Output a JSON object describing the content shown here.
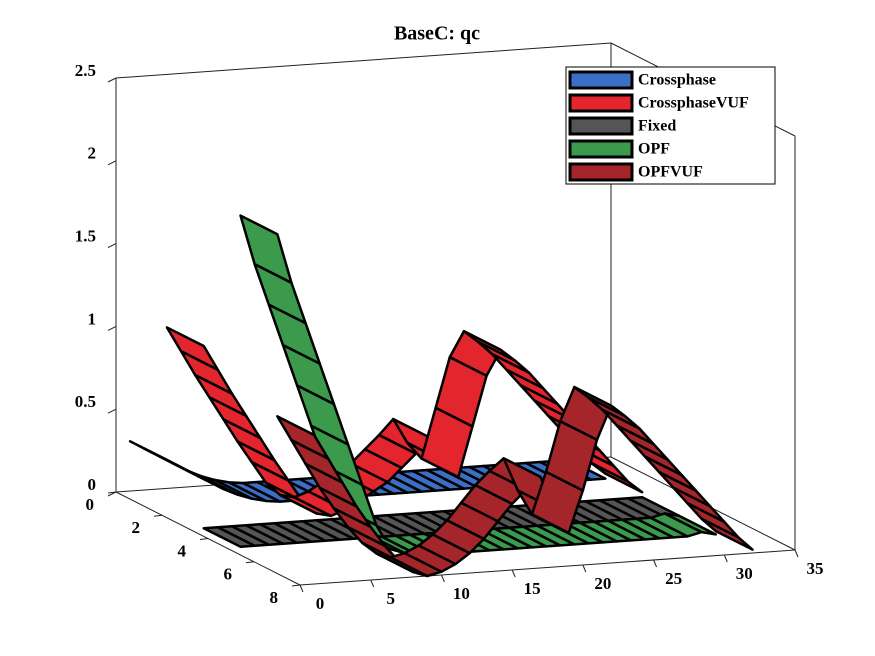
{
  "chart_data": {
    "type": "surface3d",
    "title": "BaseC: qc",
    "x": [
      1,
      2,
      3,
      4,
      5,
      6,
      7,
      8,
      9,
      10,
      11,
      12,
      13,
      14,
      15,
      16,
      17,
      18,
      19,
      20,
      21,
      22,
      23,
      24,
      25,
      26,
      27,
      28,
      29,
      30,
      31,
      32
    ],
    "xlim": [
      0,
      35
    ],
    "xticks": [
      0,
      5,
      10,
      15,
      20,
      25,
      30,
      35
    ],
    "ylim": [
      0,
      8
    ],
    "yticks": [
      0,
      2,
      4,
      6,
      8
    ],
    "zlim": [
      0,
      2.5
    ],
    "zticks": [
      0,
      0.5,
      1,
      1.5,
      2,
      2.5
    ],
    "legend": "upper right",
    "series": [
      {
        "name": "Crossphase",
        "color": "#3b6fc6",
        "values": [
          0.3,
          0.25,
          0.2,
          0.15,
          0.1,
          0.06,
          0.03,
          0.01,
          0,
          0,
          0,
          0,
          0,
          0,
          0,
          0,
          0,
          0,
          0,
          0,
          0,
          0,
          0,
          0,
          0,
          0,
          0,
          0,
          0,
          0,
          0,
          0
        ]
      },
      {
        "name": "CrossphaseVUF",
        "color": "#e3262d",
        "values": [
          1.1,
          0.95,
          0.8,
          0.66,
          0.52,
          0.38,
          0.25,
          0.12,
          0.04,
          0.02,
          0.05,
          0.1,
          0.15,
          0.2,
          0.28,
          0.36,
          0.45,
          0.3,
          0.2,
          0.5,
          0.8,
          0.95,
          0.88,
          0.8,
          0.7,
          0.6,
          0.5,
          0.4,
          0.3,
          0.2,
          0.1,
          0.03
        ]
      },
      {
        "name": "Fixed",
        "color": "#555555",
        "values": [
          0,
          0,
          0,
          0,
          0,
          0,
          0,
          0,
          0,
          0,
          0,
          0,
          0,
          0,
          0,
          0,
          0,
          0,
          0,
          0,
          0,
          0,
          0,
          0,
          0,
          0,
          0,
          0,
          0,
          0,
          0,
          0
        ]
      },
      {
        "name": "OPF",
        "color": "#3c9a4c",
        "values": [
          2.0,
          1.7,
          1.45,
          1.2,
          0.95,
          0.7,
          0.45,
          0.2,
          0.05,
          0.02,
          0,
          0,
          0,
          0,
          0,
          0,
          0,
          0,
          0,
          0,
          0,
          0,
          0,
          0,
          0,
          0,
          0,
          0,
          0,
          0,
          0.02,
          0
        ]
      },
      {
        "name": "OPFVUF",
        "color": "#a4262b",
        "values": [
          0.9,
          0.75,
          0.6,
          0.45,
          0.32,
          0.2,
          0.1,
          0.03,
          0,
          0.02,
          0.06,
          0.12,
          0.2,
          0.3,
          0.4,
          0.48,
          0.55,
          0.35,
          0.2,
          0.45,
          0.75,
          0.95,
          0.88,
          0.8,
          0.7,
          0.6,
          0.5,
          0.4,
          0.3,
          0.2,
          0.1,
          0.02
        ]
      }
    ]
  }
}
